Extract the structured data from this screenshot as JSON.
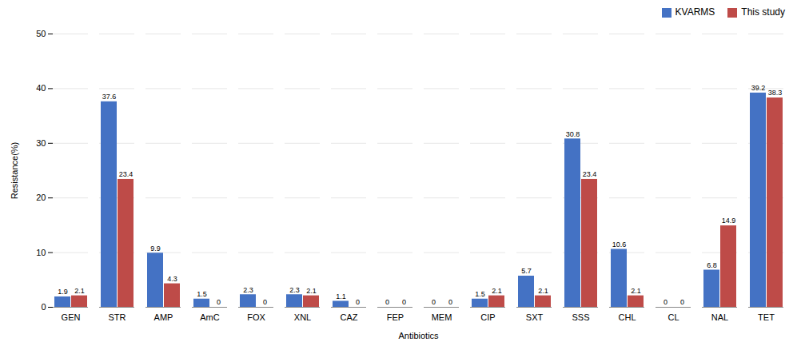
{
  "chart_data": {
    "type": "bar",
    "categories": [
      "GEN",
      "STR",
      "AMP",
      "AmC",
      "FOX",
      "XNL",
      "CAZ",
      "FEP",
      "MEM",
      "CIP",
      "SXT",
      "SSS",
      "CHL",
      "CL",
      "NAL",
      "TET"
    ],
    "series": [
      {
        "name": "KVARMS",
        "color": "#4472C4",
        "values": [
          1.9,
          37.6,
          9.9,
          1.5,
          2.3,
          2.3,
          1.1,
          0.0,
          0.0,
          1.5,
          5.7,
          30.8,
          10.6,
          0.0,
          6.8,
          39.2
        ]
      },
      {
        "name": "This study",
        "color": "#BE4B48",
        "values": [
          2.1,
          23.4,
          4.3,
          0.0,
          0.0,
          2.1,
          0.0,
          0.0,
          0.0,
          2.1,
          2.1,
          23.4,
          2.1,
          0.0,
          14.9,
          38.3
        ]
      }
    ],
    "xlabel": "Antibiotics",
    "ylabel": "Resistance(%)",
    "ylim": [
      0,
      50
    ],
    "yticks": [
      0,
      10,
      20,
      30,
      40,
      50
    ],
    "grid": true,
    "legend": "upper right",
    "data_labels": true
  }
}
